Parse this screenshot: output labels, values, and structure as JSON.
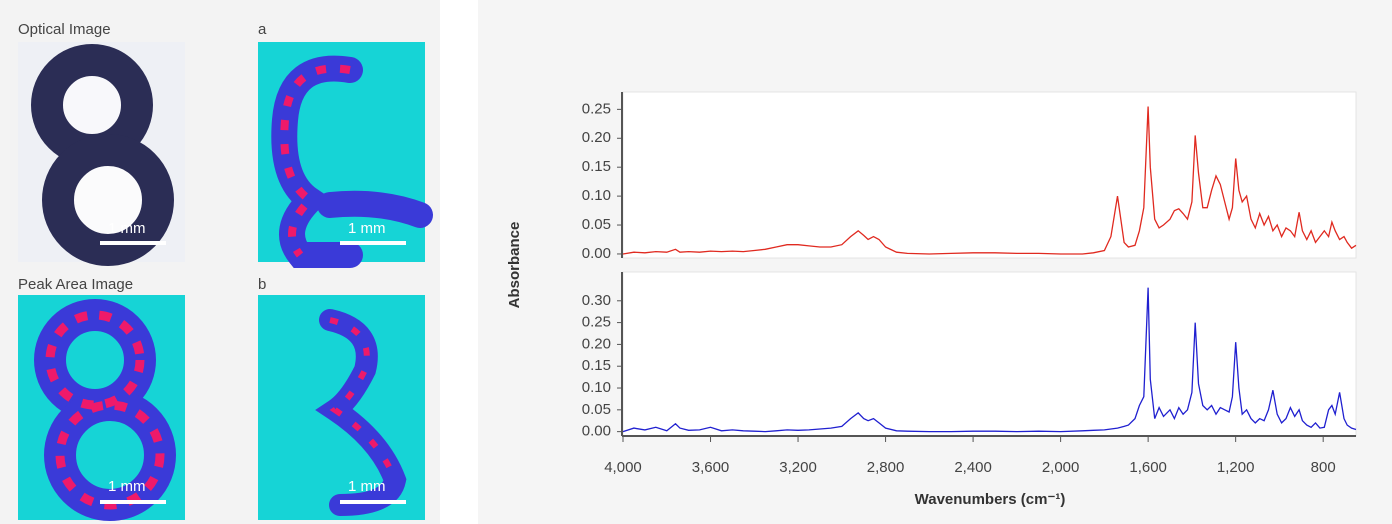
{
  "panels": [
    {
      "title": "Optical Image",
      "scale_bar": "1 mm"
    },
    {
      "title": "a",
      "scale_bar": "1 mm"
    },
    {
      "title": "Peak Area Image",
      "scale_bar": "1 mm"
    },
    {
      "title": "b",
      "scale_bar": "1 mm"
    }
  ],
  "chart_data": [
    {
      "type": "line",
      "ylabel": "Absorbance",
      "x": [
        4000,
        3950,
        3900,
        3850,
        3800,
        3760,
        3740,
        3700,
        3650,
        3600,
        3550,
        3500,
        3450,
        3400,
        3350,
        3300,
        3250,
        3200,
        3150,
        3100,
        3050,
        3000,
        2960,
        2925,
        2900,
        2880,
        2855,
        2830,
        2800,
        2750,
        2700,
        2600,
        2500,
        2400,
        2300,
        2200,
        2100,
        2000,
        1900,
        1850,
        1800,
        1770,
        1740,
        1725,
        1710,
        1690,
        1660,
        1640,
        1620,
        1600,
        1590,
        1570,
        1550,
        1530,
        1500,
        1480,
        1460,
        1440,
        1420,
        1400,
        1385,
        1370,
        1350,
        1330,
        1310,
        1290,
        1270,
        1250,
        1230,
        1215,
        1200,
        1185,
        1170,
        1150,
        1130,
        1110,
        1090,
        1070,
        1050,
        1030,
        1010,
        990,
        970,
        950,
        930,
        910,
        895,
        875,
        855,
        835,
        815,
        795,
        775,
        760,
        745,
        725,
        705,
        690,
        670,
        650
      ],
      "series": [
        {
          "color": "#e02a20",
          "values": [
            0,
            0.003,
            0.002,
            0.004,
            0.003,
            0.008,
            0.003,
            0.004,
            0.003,
            0.005,
            0.004,
            0.005,
            0.004,
            0.006,
            0.008,
            0.012,
            0.016,
            0.016,
            0.014,
            0.012,
            0.012,
            0.016,
            0.03,
            0.04,
            0.032,
            0.025,
            0.03,
            0.025,
            0.012,
            0.003,
            0.001,
            0,
            0.001,
            0.002,
            0.002,
            0.001,
            0.001,
            0,
            0,
            0.002,
            0.006,
            0.03,
            0.1,
            0.06,
            0.02,
            0.012,
            0.015,
            0.04,
            0.08,
            0.255,
            0.15,
            0.06,
            0.045,
            0.05,
            0.06,
            0.075,
            0.078,
            0.07,
            0.06,
            0.09,
            0.205,
            0.14,
            0.08,
            0.08,
            0.11,
            0.135,
            0.12,
            0.09,
            0.06,
            0.08,
            0.165,
            0.11,
            0.09,
            0.1,
            0.06,
            0.045,
            0.07,
            0.05,
            0.065,
            0.04,
            0.05,
            0.03,
            0.045,
            0.04,
            0.03,
            0.072,
            0.04,
            0.025,
            0.04,
            0.02,
            0.03,
            0.04,
            0.03,
            0.055,
            0.04,
            0.025,
            0.03,
            0.02,
            0.01,
            0.015
          ]
        }
      ],
      "xlim": [
        4000,
        650
      ],
      "ylim": [
        -0.007,
        0.28
      ],
      "yticks": [
        {
          "value": 0,
          "label": "0.00"
        },
        {
          "value": 0.05,
          "label": "0.05"
        },
        {
          "value": 0.1,
          "label": "0.10"
        },
        {
          "value": 0.15,
          "label": "0.15"
        },
        {
          "value": 0.2,
          "label": "0.20"
        },
        {
          "value": 0.25,
          "label": "0.25"
        }
      ]
    },
    {
      "type": "line",
      "xlabel": "Wavenumbers (cm⁻¹)",
      "x": [
        4000,
        3950,
        3900,
        3850,
        3800,
        3760,
        3740,
        3700,
        3650,
        3600,
        3550,
        3500,
        3450,
        3400,
        3350,
        3300,
        3250,
        3200,
        3150,
        3100,
        3050,
        3000,
        2960,
        2925,
        2900,
        2880,
        2855,
        2830,
        2800,
        2750,
        2700,
        2600,
        2500,
        2400,
        2300,
        2200,
        2100,
        2000,
        1900,
        1850,
        1800,
        1770,
        1740,
        1725,
        1710,
        1690,
        1660,
        1640,
        1620,
        1600,
        1590,
        1570,
        1550,
        1530,
        1500,
        1480,
        1460,
        1440,
        1420,
        1400,
        1385,
        1370,
        1350,
        1330,
        1310,
        1290,
        1270,
        1250,
        1230,
        1215,
        1200,
        1185,
        1170,
        1150,
        1130,
        1110,
        1090,
        1070,
        1050,
        1030,
        1010,
        990,
        970,
        950,
        930,
        910,
        895,
        875,
        855,
        835,
        815,
        795,
        775,
        760,
        745,
        725,
        705,
        690,
        670,
        650
      ],
      "series": [
        {
          "color": "#2020d0",
          "values": [
            0,
            0.008,
            0.004,
            0.01,
            0.002,
            0.018,
            0.008,
            0.003,
            0.004,
            0.01,
            0.002,
            0.004,
            0.002,
            0.001,
            0,
            0.002,
            0.004,
            0.003,
            0.004,
            0.006,
            0.008,
            0.012,
            0.03,
            0.043,
            0.03,
            0.025,
            0.03,
            0.02,
            0.008,
            0.002,
            0.001,
            0,
            0,
            0.001,
            0.001,
            0,
            0.001,
            0,
            0.002,
            0.003,
            0.004,
            0.006,
            0.008,
            0.01,
            0.012,
            0.015,
            0.03,
            0.06,
            0.08,
            0.33,
            0.12,
            0.03,
            0.055,
            0.035,
            0.05,
            0.03,
            0.055,
            0.04,
            0.05,
            0.09,
            0.25,
            0.11,
            0.06,
            0.05,
            0.06,
            0.04,
            0.055,
            0.05,
            0.045,
            0.08,
            0.205,
            0.1,
            0.04,
            0.05,
            0.03,
            0.02,
            0.03,
            0.025,
            0.05,
            0.095,
            0.04,
            0.02,
            0.03,
            0.055,
            0.035,
            0.05,
            0.025,
            0.015,
            0.01,
            0.02,
            0.008,
            0.01,
            0.05,
            0.06,
            0.04,
            0.09,
            0.03,
            0.015,
            0.008,
            0.005
          ]
        }
      ],
      "xlim": [
        4000,
        650
      ],
      "ylim": [
        -0.01,
        0.366
      ],
      "xticks": [
        {
          "value": 4000,
          "label": "4,000"
        },
        {
          "value": 3600,
          "label": "3,600"
        },
        {
          "value": 3200,
          "label": "3,200"
        },
        {
          "value": 2800,
          "label": "2,800"
        },
        {
          "value": 2400,
          "label": "2,400"
        },
        {
          "value": 2000,
          "label": "2,000"
        },
        {
          "value": 1600,
          "label": "1,600"
        },
        {
          "value": 1200,
          "label": "1,200"
        },
        {
          "value": 800,
          "label": "800"
        }
      ],
      "yticks": [
        {
          "value": 0,
          "label": "0.00"
        },
        {
          "value": 0.05,
          "label": "0.05"
        },
        {
          "value": 0.1,
          "label": "0.10"
        },
        {
          "value": 0.15,
          "label": "0.15"
        },
        {
          "value": 0.2,
          "label": "0.20"
        },
        {
          "value": 0.25,
          "label": "0.25"
        },
        {
          "value": 0.3,
          "label": "0.30"
        }
      ]
    }
  ]
}
